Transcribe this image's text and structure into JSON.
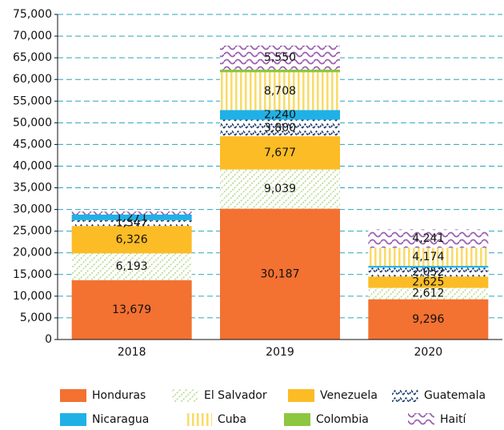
{
  "chart_data": {
    "type": "stacked_bar",
    "categories": [
      "2018",
      "2019",
      "2020"
    ],
    "series": [
      {
        "name": "Honduras",
        "color": "#f37131",
        "pattern": "solid",
        "values": [
          13679,
          30187,
          9296
        ],
        "value_labels": [
          "13,679",
          "30,187",
          "9,296"
        ]
      },
      {
        "name": "El Salvador",
        "color": "#b5d98c",
        "pattern": "diagonal",
        "values": [
          6193,
          9039,
          2612
        ],
        "value_labels": [
          "6,193",
          "9,039",
          "2,612"
        ]
      },
      {
        "name": "Venezuela",
        "color": "#fcbc26",
        "pattern": "solid",
        "values": [
          6326,
          7677,
          2625
        ],
        "value_labels": [
          "6,326",
          "7,677",
          "2,625"
        ]
      },
      {
        "name": "Guatemala",
        "color": "#1d3d6e",
        "pattern": "zigzag",
        "values": [
          1347,
          3800,
          2052
        ],
        "value_labels": [
          "1,347",
          "3,800",
          "2,052"
        ]
      },
      {
        "name": "Nicaragua",
        "color": "#1fb1e6",
        "pattern": "solid",
        "values": [
          1271,
          2240,
          400
        ],
        "value_labels": [
          "1,271",
          "2,240",
          null
        ]
      },
      {
        "name": "Cuba",
        "color": "#f9dc6a",
        "pattern": "vertical",
        "values": [
          null,
          8708,
          4174
        ],
        "value_labels": [
          null,
          "8,708",
          "4,174"
        ]
      },
      {
        "name": "Colombia",
        "color": "#8dc63f",
        "pattern": "solid",
        "values": [
          null,
          600,
          null
        ],
        "value_labels": [
          null,
          null,
          null
        ]
      },
      {
        "name": "Haití",
        "color": "#9b5fb0",
        "pattern": "wave",
        "values": [
          700,
          5550,
          4241
        ],
        "value_labels": [
          null,
          "5,550",
          "4,241"
        ]
      }
    ],
    "ylim": [
      0,
      75000
    ],
    "yticks": [
      0,
      {
        "value": 5000,
        "label": "5,000"
      },
      {
        "value": 10000,
        "label": "10,000"
      },
      {
        "value": 15000,
        "label": "15,000"
      },
      {
        "value": 20000,
        "label": "20,000"
      },
      {
        "value": 25000,
        "label": "25,000"
      },
      {
        "value": 30000,
        "label": "30,000"
      },
      {
        "value": 35000,
        "label": "35,000"
      },
      {
        "value": 40000,
        "label": "40,000"
      },
      {
        "value": 45000,
        "label": "45,000"
      },
      {
        "value": 50000,
        "label": "50,000"
      },
      {
        "value": 55000,
        "label": "55,000"
      },
      {
        "value": 60000,
        "label": "60,000"
      },
      {
        "value": 65000,
        "label": "65,000"
      },
      {
        "value": 70000,
        "label": "70,000"
      },
      {
        "value": 75000,
        "label": "75,000"
      }
    ],
    "grid": true
  }
}
